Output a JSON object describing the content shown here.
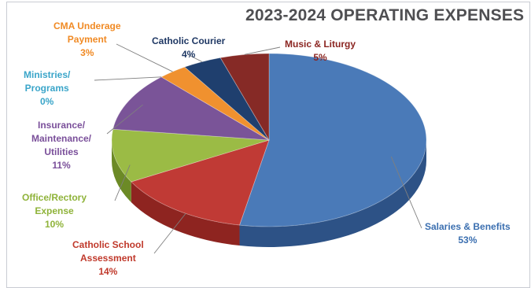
{
  "chart_data": {
    "type": "pie",
    "title": "2023-2024 OPERATING EXPENSES",
    "slices": [
      {
        "name": "Salaries & Benefits",
        "value": 53,
        "label": "53%",
        "color": "#4a7ab8",
        "side": "#2d5286"
      },
      {
        "name": "Catholic School Assessment",
        "value": 14,
        "label": "14%",
        "color": "#c03a35",
        "side": "#8e2420"
      },
      {
        "name": "Office/Rectory Expense",
        "value": 10,
        "label": "10%",
        "color": "#9bbb45",
        "side": "#6c8a26"
      },
      {
        "name": "Insurance/ Maintenance/ Utilities",
        "value": 11,
        "label": "11%",
        "color": "#7a5498",
        "side": "#553770"
      },
      {
        "name": "Ministries/ Programs",
        "value": 0,
        "label": "0%",
        "color": "#3ea3c6",
        "side": "#247a98"
      },
      {
        "name": "CMA Underage Payment",
        "value": 3,
        "label": "3%",
        "color": "#f0912f",
        "side": "#b66610"
      },
      {
        "name": "Catholic Courier",
        "value": 4,
        "label": "4%",
        "color": "#1f3f6e",
        "side": "#11284a"
      },
      {
        "name": "Music & Liturgy",
        "value": 5,
        "label": "5%",
        "color": "#862a26",
        "side": "#5a1714"
      }
    ],
    "label_lines": {
      "salaries_1": "Salaries & Benefits",
      "school_1": "Catholic School",
      "school_2": "Assessment",
      "office_1": "Office/Rectory",
      "office_2": "Expense",
      "insurance_1": "Insurance/",
      "insurance_2": "Maintenance/",
      "insurance_3": "Utilities",
      "ministries_1": "Ministries/",
      "ministries_2": "Programs",
      "cma_1": "CMA Underage",
      "cma_2": "Payment",
      "courier_1": "Catholic Courier",
      "music_1": "Music & Liturgy"
    },
    "label_colors": {
      "salaries": "#3b6fb0",
      "school": "#c0392b",
      "office": "#8fb33a",
      "insurance": "#7a4f9a",
      "ministries": "#3aa5c9",
      "cma": "#f08a24",
      "courier": "#1f3864",
      "music": "#8b2521"
    }
  }
}
